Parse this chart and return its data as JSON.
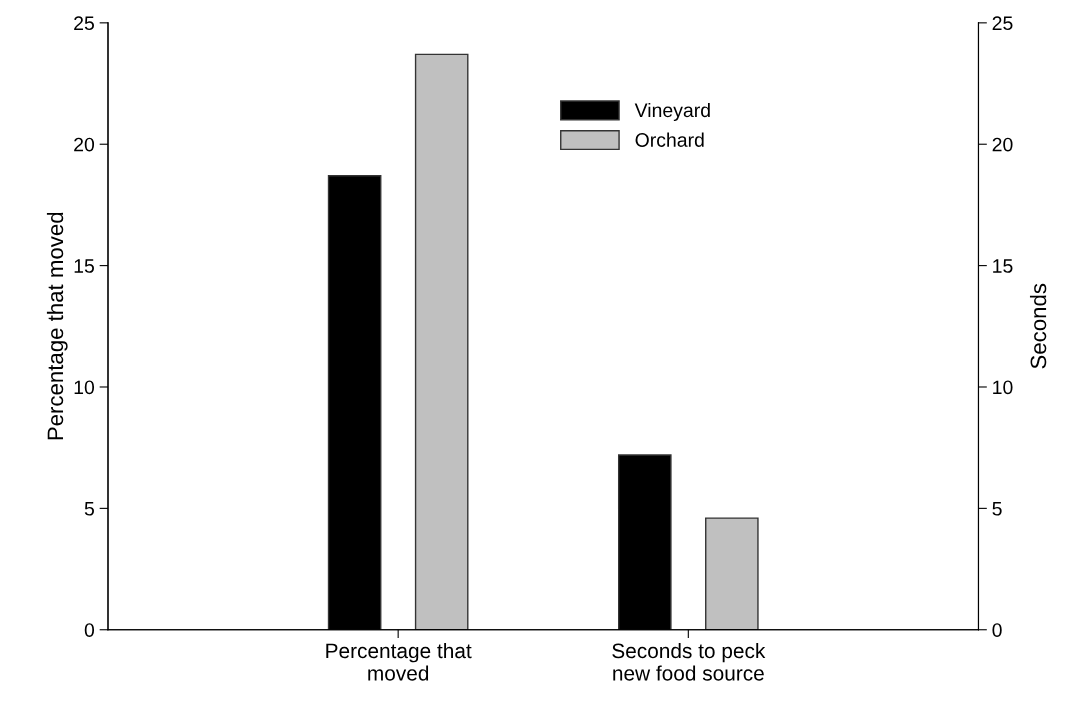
{
  "chart_data": {
    "type": "bar",
    "categories": [
      "Percentage that\nmoved",
      "Seconds to peck\nnew food source"
    ],
    "series": [
      {
        "name": "Vineyard",
        "color": "#000000",
        "values": [
          18.7,
          7.2
        ]
      },
      {
        "name": "Orchard",
        "color": "#c0c0c0",
        "values": [
          23.7,
          4.6
        ]
      }
    ],
    "ylabel": "Percentage that moved",
    "y2label": "Seconds",
    "ylim": [
      0,
      25
    ],
    "yticks": [
      0,
      5,
      10,
      15,
      20,
      25
    ],
    "y2lim": [
      0,
      25
    ],
    "y2ticks": [
      0,
      5,
      10,
      15,
      20,
      25
    ],
    "legend": "top",
    "grid": false
  }
}
